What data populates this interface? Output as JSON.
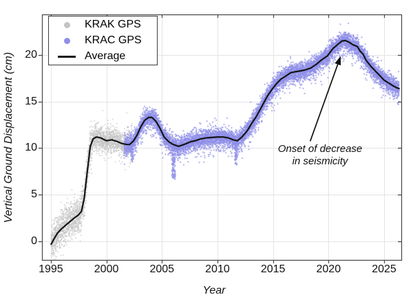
{
  "chart_data": {
    "type": "scatter",
    "title": "",
    "xlabel": "Year",
    "ylabel": "Vertical Ground Displacement (cm)",
    "xlim": [
      1994.2,
      2026.55
    ],
    "ylim": [
      -1.99,
      24.35
    ],
    "xticks": [
      1995,
      2000,
      2005,
      2010,
      2015,
      2020,
      2025
    ],
    "yticks": [
      0,
      5,
      10,
      15,
      20
    ],
    "grid": true,
    "grid_color": "#e4e4e4",
    "axis_color": "#444444",
    "legend": {
      "position": "top-left",
      "items": [
        {
          "label": "KRAK GPS",
          "marker": "dot",
          "color": "#c4c4c4"
        },
        {
          "label": "KRAC GPS",
          "marker": "dot",
          "color": "#8f8fe9"
        },
        {
          "label": "Average",
          "marker": "line",
          "color": "#111111"
        }
      ]
    },
    "annotation": {
      "text_line1": "Onset of decrease",
      "text_line2": "in seismicity",
      "arrow_from": [
        2018.35,
        10.75
      ],
      "arrow_to": [
        2021.1,
        19.9
      ]
    },
    "average_series": {
      "name": "Average",
      "color": "#141414",
      "x": [
        1995.02,
        1995.3,
        1995.6,
        1996.0,
        1996.4,
        1996.8,
        1997.1,
        1997.45,
        1997.75,
        1998.0,
        1998.25,
        1998.55,
        1998.8,
        1999.1,
        1999.5,
        2000.0,
        2000.5,
        2001.0,
        2001.4,
        2001.8,
        2002.1,
        2002.45,
        2002.8,
        2003.1,
        2003.45,
        2003.8,
        2004.1,
        2004.45,
        2004.8,
        2005.2,
        2005.6,
        2006.0,
        2006.5,
        2007.0,
        2007.6,
        2008.0,
        2008.5,
        2009.0,
        2009.5,
        2010.0,
        2010.5,
        2011.0,
        2011.4,
        2011.8,
        2012.2,
        2012.7,
        2013.1,
        2013.5,
        2014.0,
        2014.5,
        2014.9,
        2015.3,
        2015.7,
        2016.1,
        2016.6,
        2017.0,
        2017.5,
        2017.9,
        2018.4,
        2018.9,
        2019.4,
        2019.9,
        2020.4,
        2020.9,
        2021.2,
        2021.5,
        2021.8,
        2022.2,
        2022.6,
        2022.85,
        2023.1,
        2023.4,
        2023.8,
        2024.2,
        2024.6,
        2025.0,
        2025.4,
        2025.8,
        2026.1,
        2026.35
      ],
      "y": [
        -0.3,
        0.3,
        0.9,
        1.4,
        1.8,
        2.2,
        2.5,
        2.8,
        3.2,
        4.6,
        7.2,
        10.2,
        11.0,
        11.2,
        11.1,
        10.8,
        10.9,
        10.7,
        10.5,
        10.4,
        10.4,
        10.8,
        11.5,
        12.3,
        13.0,
        13.3,
        13.3,
        12.9,
        12.2,
        11.2,
        10.7,
        10.4,
        10.2,
        10.4,
        10.7,
        10.8,
        11.0,
        11.1,
        11.15,
        11.2,
        11.2,
        11.1,
        10.9,
        10.8,
        11.2,
        11.9,
        12.7,
        13.4,
        14.5,
        15.6,
        16.3,
        16.9,
        17.4,
        17.7,
        18.1,
        18.2,
        18.3,
        18.4,
        18.6,
        19.0,
        19.5,
        19.9,
        20.7,
        21.2,
        21.5,
        21.55,
        21.4,
        21.1,
        20.9,
        20.4,
        20.1,
        19.4,
        18.8,
        18.3,
        17.8,
        17.3,
        17.0,
        16.7,
        16.5,
        16.4
      ]
    },
    "scatter_series": [
      {
        "name": "KRAK GPS",
        "color": "#c4c4c4",
        "x_start": 1995.02,
        "x_end": 2002.35,
        "points": 2600,
        "sd_early": 0.95,
        "sd_late": 0.62,
        "sd_break": 1998.7
      },
      {
        "name": "KRAC GPS",
        "color": "#8f8fe9",
        "halo_color": "#c7c7f5",
        "x_start": 2001.6,
        "x_end": 2026.35,
        "points": 9100,
        "sd": 0.46,
        "outlier_clusters": [
          {
            "x": 2002.32,
            "width": 0.1,
            "depth": 2.0,
            "count": 45
          },
          {
            "x": 2006.05,
            "width": 0.16,
            "depth": 3.4,
            "count": 110
          },
          {
            "x": 2011.68,
            "width": 0.12,
            "depth": 2.3,
            "count": 70
          }
        ]
      }
    ]
  }
}
